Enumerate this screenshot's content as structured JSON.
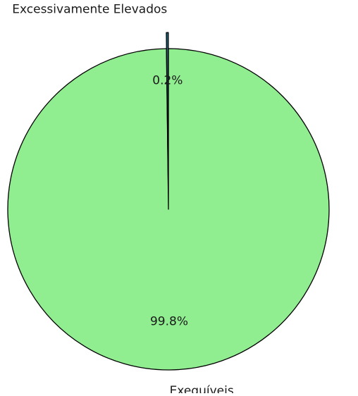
{
  "chart_data": {
    "type": "pie",
    "labels": [
      "Excessivamente Elevados",
      "Exequíveis"
    ],
    "values": [
      0.2,
      99.8
    ],
    "value_labels": [
      "0.2%",
      "99.8%"
    ],
    "colors": [
      "#1b6f86",
      "#90ee90"
    ],
    "explode": [
      0.1,
      0
    ],
    "title": "",
    "legend": "none"
  }
}
